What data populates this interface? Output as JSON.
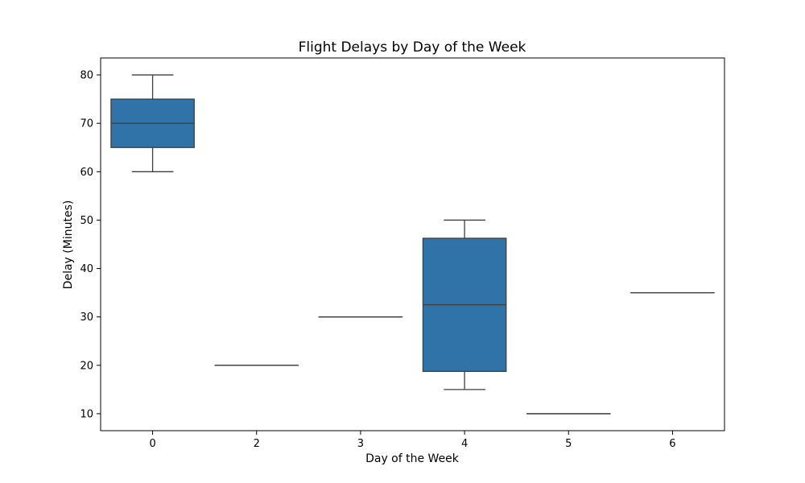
{
  "chart_data": {
    "type": "box",
    "title": "Flight Delays by Day of the Week",
    "xlabel": "Day of the Week",
    "ylabel": "Delay (Minutes)",
    "categories": [
      "0",
      "2",
      "3",
      "4",
      "5",
      "6"
    ],
    "boxes": [
      {
        "category": "0",
        "whisker_low": 60,
        "q1": 65,
        "median": 70,
        "q3": 75,
        "whisker_high": 80
      },
      {
        "category": "2",
        "whisker_low": 20,
        "q1": 20,
        "median": 20,
        "q3": 20,
        "whisker_high": 20
      },
      {
        "category": "3",
        "whisker_low": 30,
        "q1": 30,
        "median": 30,
        "q3": 30,
        "whisker_high": 30
      },
      {
        "category": "4",
        "whisker_low": 15,
        "q1": 18.75,
        "median": 32.5,
        "q3": 46.25,
        "whisker_high": 50
      },
      {
        "category": "5",
        "whisker_low": 10,
        "q1": 10,
        "median": 10,
        "q3": 10,
        "whisker_high": 10
      },
      {
        "category": "6",
        "whisker_low": 35,
        "q1": 35,
        "median": 35,
        "q3": 35,
        "whisker_high": 35
      }
    ],
    "yticks": [
      10,
      20,
      30,
      40,
      50,
      60,
      70,
      80
    ],
    "ylim": [
      6.5,
      83.5
    ],
    "grid": false,
    "legend": "none",
    "colors": {
      "box_fill": "#2f73a8",
      "line": "#3f3f3f"
    }
  }
}
